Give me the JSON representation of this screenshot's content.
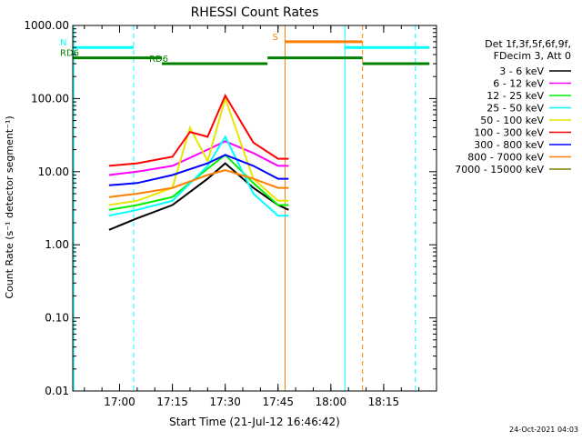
{
  "chart_data": {
    "type": "line",
    "title": "RHESSI Count Rates",
    "xlabel": "Start Time (21-Jul-12 16:46:42)",
    "ylabel": "Count Rate (s⁻¹ detector segment⁻¹)",
    "y_scale": "log",
    "ylim": [
      0.01,
      1000
    ],
    "xlim": [
      "16:46:42",
      "18:30:00"
    ],
    "x_ticks": [
      "17:00",
      "17:15",
      "17:30",
      "17:45",
      "18:00",
      "18:15"
    ],
    "y_ticks": [
      "0.01",
      "0.10",
      "1.00",
      "10.00",
      "100.00",
      "1000.00"
    ],
    "legend_header": [
      "Det 1f,3f,5f,6f,9f,",
      "FDecim 3, Att 0"
    ],
    "legend_position": "right",
    "series": [
      {
        "name": "3 - 6 keV",
        "color": "#000000",
        "points": [
          [
            "16:57",
            1.6
          ],
          [
            "17:05",
            2.3
          ],
          [
            "17:15",
            3.5
          ],
          [
            "17:25",
            8
          ],
          [
            "17:30",
            13
          ],
          [
            "17:38",
            6
          ],
          [
            "17:45",
            3.5
          ],
          [
            "17:48",
            3
          ]
        ]
      },
      {
        "name": "6 - 12 keV",
        "color": "#ff00ff",
        "points": [
          [
            "16:57",
            9
          ],
          [
            "17:05",
            10
          ],
          [
            "17:15",
            12
          ],
          [
            "17:25",
            20
          ],
          [
            "17:30",
            26
          ],
          [
            "17:38",
            18
          ],
          [
            "17:45",
            12
          ],
          [
            "17:48",
            12
          ]
        ]
      },
      {
        "name": "12 - 25 keV",
        "color": "#00ee00",
        "points": [
          [
            "16:57",
            3
          ],
          [
            "17:05",
            3.5
          ],
          [
            "17:15",
            4.5
          ],
          [
            "17:25",
            11
          ],
          [
            "17:30",
            17
          ],
          [
            "17:38",
            7
          ],
          [
            "17:45",
            3.5
          ],
          [
            "17:48",
            3.5
          ]
        ]
      },
      {
        "name": "25 - 50 keV",
        "color": "#00ffff",
        "points": [
          [
            "16:57",
            2.5
          ],
          [
            "17:05",
            3
          ],
          [
            "17:15",
            4
          ],
          [
            "17:25",
            12
          ],
          [
            "17:30",
            30
          ],
          [
            "17:38",
            5
          ],
          [
            "17:45",
            2.5
          ],
          [
            "17:48",
            2.5
          ]
        ]
      },
      {
        "name": "50 - 100 keV",
        "color": "#e6e600",
        "points": [
          [
            "16:57",
            3.5
          ],
          [
            "17:05",
            4
          ],
          [
            "17:15",
            6
          ],
          [
            "17:20",
            40
          ],
          [
            "17:25",
            14
          ],
          [
            "17:30",
            100
          ],
          [
            "17:38",
            8
          ],
          [
            "17:45",
            4
          ],
          [
            "17:48",
            4
          ]
        ]
      },
      {
        "name": "100 - 300 keV",
        "color": "#ff0000",
        "points": [
          [
            "16:57",
            12
          ],
          [
            "17:05",
            13
          ],
          [
            "17:15",
            16
          ],
          [
            "17:20",
            35
          ],
          [
            "17:25",
            30
          ],
          [
            "17:30",
            110
          ],
          [
            "17:38",
            25
          ],
          [
            "17:45",
            15
          ],
          [
            "17:48",
            15
          ]
        ]
      },
      {
        "name": "300 - 800 keV",
        "color": "#0000ff",
        "points": [
          [
            "16:57",
            6.5
          ],
          [
            "17:05",
            7
          ],
          [
            "17:15",
            9
          ],
          [
            "17:25",
            13
          ],
          [
            "17:30",
            17
          ],
          [
            "17:38",
            12
          ],
          [
            "17:45",
            8
          ],
          [
            "17:48",
            8
          ]
        ]
      },
      {
        "name": "800 - 7000 keV",
        "color": "#ff8000",
        "points": [
          [
            "16:57",
            4.5
          ],
          [
            "17:05",
            5
          ],
          [
            "17:15",
            6
          ],
          [
            "17:25",
            9
          ],
          [
            "17:30",
            10.5
          ],
          [
            "17:38",
            8
          ],
          [
            "17:45",
            6
          ],
          [
            "17:48",
            6
          ]
        ]
      },
      {
        "name": "7000 - 15000 keV",
        "color": "#808000",
        "points": []
      }
    ],
    "annotations": {
      "flags": [
        {
          "label": "N",
          "color": "#00ffff",
          "rate": 500,
          "segments": [
            [
              "16:46:42",
              "17:04"
            ],
            [
              "18:04",
              "18:28"
            ]
          ]
        },
        {
          "label": "S",
          "color": "#ff8000",
          "rate": 600,
          "segments": [
            [
              "17:47",
              "18:09"
            ]
          ]
        },
        {
          "label": "RD6",
          "color": "#008000",
          "rate": 360,
          "segments": [
            [
              "16:46:42",
              "17:12"
            ],
            [
              "17:42",
              "18:09"
            ]
          ]
        },
        {
          "label": "RD6",
          "color": "#008000",
          "rate": 300,
          "segments": [
            [
              "17:12",
              "17:42"
            ],
            [
              "18:09",
              "18:28"
            ]
          ]
        }
      ],
      "vlines": [
        {
          "time": "16:47",
          "color": "#00ffff",
          "style": "solid"
        },
        {
          "time": "17:04",
          "color": "#00ffff",
          "style": "dashed"
        },
        {
          "time": "17:47",
          "color": "#ff8000",
          "style": "solid"
        },
        {
          "time": "18:04",
          "color": "#00ffff",
          "style": "solid"
        },
        {
          "time": "18:09",
          "color": "#ff8000",
          "style": "dashed"
        },
        {
          "time": "18:24",
          "color": "#00ffff",
          "style": "dashed"
        }
      ]
    }
  },
  "footer": {
    "timestamp": "24-Oct-2021 04:03"
  }
}
